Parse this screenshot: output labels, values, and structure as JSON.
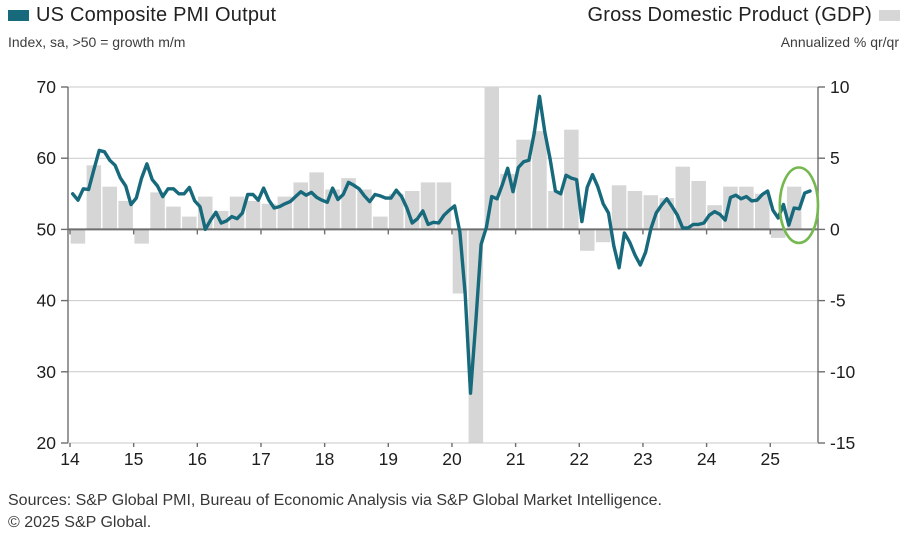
{
  "header": {
    "left": {
      "title": "US Composite PMI Output",
      "subtitle": "Index, sa, >50 = growth m/m",
      "swatch_color": "#17697C"
    },
    "right": {
      "title": "Gross Domestic Product (GDP)",
      "subtitle": "Annualized % qr/qr",
      "swatch_color": "#D6D6D6"
    }
  },
  "footer": {
    "sources": "Sources: S&P Global PMI, Bureau of Economic Analysis via S&P Global Market Intelligence.",
    "copyright": "© 2025 S&P Global."
  },
  "chart_data": {
    "type": "line+bar",
    "title": "US Composite PMI Output vs Gross Domestic Product (GDP)",
    "grid": "horizontal",
    "colors": {
      "line": "#17697C",
      "bar": "#D6D6D6",
      "gridline": "#C9C9C9",
      "axis": "#6E6E6E",
      "tick_text": "#1E1E1E",
      "annotation": "#74B84F"
    },
    "left_axis": {
      "series": "US Composite PMI Output",
      "units": "Index, sa, >50 = growth m/m",
      "range": [
        20,
        70
      ],
      "ticks": [
        20,
        30,
        40,
        50,
        60,
        70
      ]
    },
    "right_axis": {
      "series": "Gross Domestic Product (GDP)",
      "units": "Annualized % qr/qr",
      "range": [
        -15,
        10
      ],
      "ticks": [
        -15,
        -10,
        -5,
        0,
        5,
        10
      ]
    },
    "x_axis": {
      "tick_labels": [
        "14",
        "15",
        "16",
        "17",
        "18",
        "19",
        "20",
        "21",
        "22",
        "23",
        "24",
        "25"
      ],
      "start_year": 2014,
      "end_year_fraction": 2025.75
    },
    "baseline": {
      "left_value": 50,
      "right_value": 0
    },
    "series": [
      {
        "name": "US Composite PMI Output",
        "type": "line",
        "axis": "left",
        "frequency": "monthly",
        "start": "2014-01",
        "values": [
          55.0,
          54.1,
          55.7,
          55.6,
          58.4,
          61.1,
          60.9,
          59.7,
          59.0,
          57.2,
          56.1,
          53.5,
          54.4,
          57.2,
          59.2,
          57.0,
          56.1,
          54.6,
          55.7,
          55.7,
          55.0,
          55.0,
          55.9,
          54.0,
          53.2,
          50.0,
          51.3,
          52.4,
          50.9,
          51.2,
          51.8,
          51.5,
          52.3,
          54.9,
          54.9,
          54.1,
          55.8,
          54.1,
          53.0,
          53.2,
          53.6,
          53.9,
          54.6,
          55.3,
          54.8,
          55.2,
          54.5,
          54.1,
          53.8,
          55.8,
          54.2,
          54.9,
          56.6,
          56.2,
          55.7,
          54.7,
          53.9,
          54.9,
          54.7,
          54.4,
          54.4,
          55.5,
          54.6,
          53.0,
          50.9,
          51.5,
          52.6,
          50.7,
          51.0,
          50.9,
          52.0,
          52.7,
          53.3,
          49.6,
          40.9,
          27.0,
          37.0,
          47.9,
          50.3,
          54.6,
          54.3,
          56.3,
          58.6,
          55.3,
          58.7,
          59.5,
          59.7,
          63.5,
          68.7,
          63.7,
          59.9,
          55.4,
          55.0,
          57.6,
          57.2,
          57.0,
          51.1,
          55.9,
          57.7,
          56.0,
          53.6,
          52.3,
          47.7,
          44.6,
          49.5,
          48.2,
          46.4,
          45.0,
          46.8,
          50.1,
          52.3,
          53.4,
          54.3,
          53.2,
          52.0,
          50.2,
          50.2,
          50.7,
          50.7,
          50.9,
          52.0,
          52.5,
          52.1,
          51.3,
          54.5,
          54.8,
          54.3,
          54.6,
          54.0,
          54.1,
          54.9,
          55.4,
          52.7,
          51.6,
          53.5,
          50.6,
          53.0,
          52.9,
          55.1,
          55.4
        ]
      },
      {
        "name": "Gross Domestic Product (GDP)",
        "type": "bar",
        "axis": "right",
        "frequency": "quarterly",
        "start": "2014-Q1",
        "clipped_to_axis_range": true,
        "values": [
          -1.0,
          4.5,
          3.0,
          2.0,
          -1.0,
          2.6,
          1.6,
          0.9,
          2.3,
          1.3,
          2.3,
          2.0,
          1.8,
          2.3,
          3.3,
          4.0,
          2.8,
          3.6,
          2.8,
          0.9,
          2.5,
          2.7,
          3.3,
          3.3,
          -4.5,
          -31.4,
          33.4,
          3.9,
          6.3,
          6.9,
          2.7,
          7.0,
          -1.5,
          -0.9,
          3.1,
          2.7,
          2.4,
          2.2,
          4.4,
          3.4,
          1.7,
          3.0,
          3.0,
          2.5,
          -0.6,
          3.0
        ]
      }
    ],
    "annotation": {
      "shape": "ellipse",
      "meaning": "highlights latest 2025 PMI and GDP readings",
      "center_year": 2025.45,
      "center_value_left_axis": 53.4,
      "rx_years": 0.3,
      "ry_left_axis_units": 5.3,
      "color": "#74B84F"
    }
  }
}
